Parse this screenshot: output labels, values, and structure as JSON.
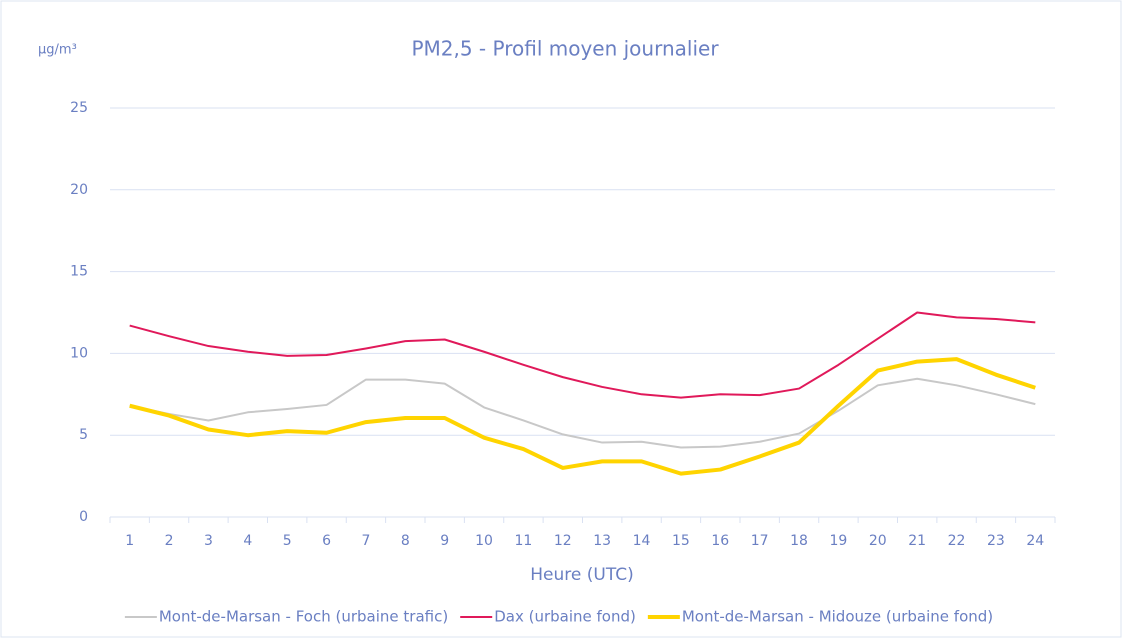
{
  "chart_data": {
    "type": "line",
    "title": "PM2,5  - Profil moyen journalier",
    "y_unit": "µg/m³",
    "xlabel": "Heure (UTC)",
    "categories": [
      "1",
      "2",
      "3",
      "4",
      "5",
      "6",
      "7",
      "8",
      "9",
      "10",
      "11",
      "12",
      "13",
      "14",
      "15",
      "16",
      "17",
      "18",
      "19",
      "20",
      "21",
      "22",
      "23",
      "24"
    ],
    "series": [
      {
        "name": "Mont-de-Marsan - Foch (urbaine trafic)",
        "color": "#c8c8c8",
        "width": 2,
        "values": [
          6.8,
          6.3,
          5.9,
          6.4,
          6.6,
          6.85,
          8.4,
          8.4,
          8.15,
          6.7,
          5.9,
          5.05,
          4.55,
          4.6,
          4.25,
          4.3,
          4.6,
          5.1,
          6.5,
          8.05,
          8.45,
          8.05,
          7.5,
          6.9
        ]
      },
      {
        "name": "Dax (urbaine fond)",
        "color": "#e0195a",
        "width": 2,
        "values": [
          11.7,
          11.05,
          10.45,
          10.1,
          9.85,
          9.9,
          10.3,
          10.75,
          10.85,
          10.1,
          9.3,
          8.55,
          7.95,
          7.5,
          7.3,
          7.5,
          7.45,
          7.85,
          9.3,
          10.9,
          12.5,
          12.2,
          12.1,
          11.9
        ]
      },
      {
        "name": "Mont-de-Marsan - Midouze (urbaine fond)",
        "color": "#ffd400",
        "width": 4,
        "values": [
          6.8,
          6.2,
          5.35,
          5.0,
          5.25,
          5.15,
          5.8,
          6.05,
          6.05,
          4.85,
          4.15,
          3.0,
          3.4,
          3.4,
          2.65,
          2.9,
          3.7,
          4.55,
          6.8,
          8.95,
          9.5,
          9.65,
          8.7,
          7.9
        ]
      }
    ],
    "ylim": [
      0,
      25
    ],
    "yticks": [
      0,
      5,
      10,
      15,
      20,
      25
    ],
    "grid": true,
    "legend": "bottom"
  }
}
